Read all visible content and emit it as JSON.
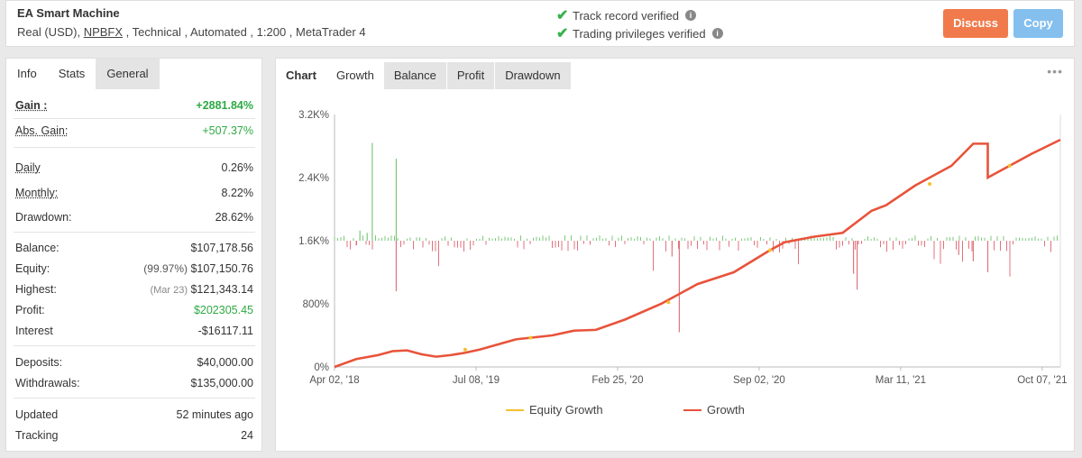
{
  "header": {
    "title": "EA Smart Machine",
    "subtitle_pre": "Real (USD), ",
    "broker": "NPBFX",
    "subtitle_post": " , Technical , Automated , 1:200 , MetaTrader 4",
    "verify1": "Track record verified",
    "verify2": "Trading privileges verified",
    "discuss": "Discuss",
    "copy": "Copy"
  },
  "left_tabs": [
    "Info",
    "Stats",
    "General"
  ],
  "stats": {
    "gain_label": "Gain :",
    "gain": "+2881.84%",
    "abs_gain_label": "Abs. Gain:",
    "abs_gain": "+507.37%",
    "daily_label": "Daily",
    "daily": "0.26%",
    "monthly_label": "Monthly:",
    "monthly": "8.22%",
    "drawdown_label": "Drawdown:",
    "drawdown": "28.62%",
    "balance_label": "Balance:",
    "balance": "$107,178.56",
    "equity_label": "Equity:",
    "equity_pct": "(99.97%)",
    "equity": "$107,150.76",
    "highest_label": "Highest:",
    "highest_date": "(Mar 23)",
    "highest": "$121,343.14",
    "profit_label": "Profit:",
    "profit": "$202305.45",
    "interest_label": "Interest",
    "interest": "-$16117.11",
    "deposits_label": "Deposits:",
    "deposits": "$40,000.00",
    "withdrawals_label": "Withdrawals:",
    "withdrawals": "$135,000.00",
    "updated_label": "Updated",
    "updated": "52 minutes ago",
    "tracking_label": "Tracking",
    "tracking": "24"
  },
  "right_tabs": [
    "Chart",
    "Growth",
    "Balance",
    "Profit",
    "Drawdown"
  ],
  "chart_data": {
    "type": "line",
    "y_ticks": [
      "0%",
      "800%",
      "1.6K%",
      "2.4K%",
      "3.2K%"
    ],
    "x_ticks": [
      "Apr 02, '18",
      "Jul 08, '19",
      "Feb 25, '20",
      "Sep 02, '20",
      "Mar 11, '21",
      "Oct 07, '21"
    ],
    "ylim": [
      0,
      3200
    ],
    "series": [
      {
        "name": "Growth",
        "color": "#e8533a",
        "x": [
          0,
          0.03,
          0.06,
          0.08,
          0.1,
          0.12,
          0.14,
          0.16,
          0.18,
          0.2,
          0.25,
          0.3,
          0.33,
          0.36,
          0.4,
          0.45,
          0.5,
          0.55,
          0.6,
          0.62,
          0.66,
          0.7,
          0.74,
          0.76,
          0.8,
          0.85,
          0.88,
          0.9,
          0.93,
          0.94,
          0.96,
          1.0
        ],
        "y": [
          0,
          100,
          150,
          200,
          210,
          160,
          130,
          150,
          180,
          220,
          350,
          400,
          460,
          470,
          600,
          800,
          1050,
          1200,
          1480,
          1580,
          1650,
          1700,
          1980,
          2050,
          2300,
          2550,
          2830,
          2400,
          2550,
          2600,
          2700,
          2880
        ]
      },
      {
        "name": "Equity Growth",
        "color": "#f2c12e"
      }
    ],
    "daily_bars": "green/red daily profit bars around 1.6K% baseline"
  }
}
